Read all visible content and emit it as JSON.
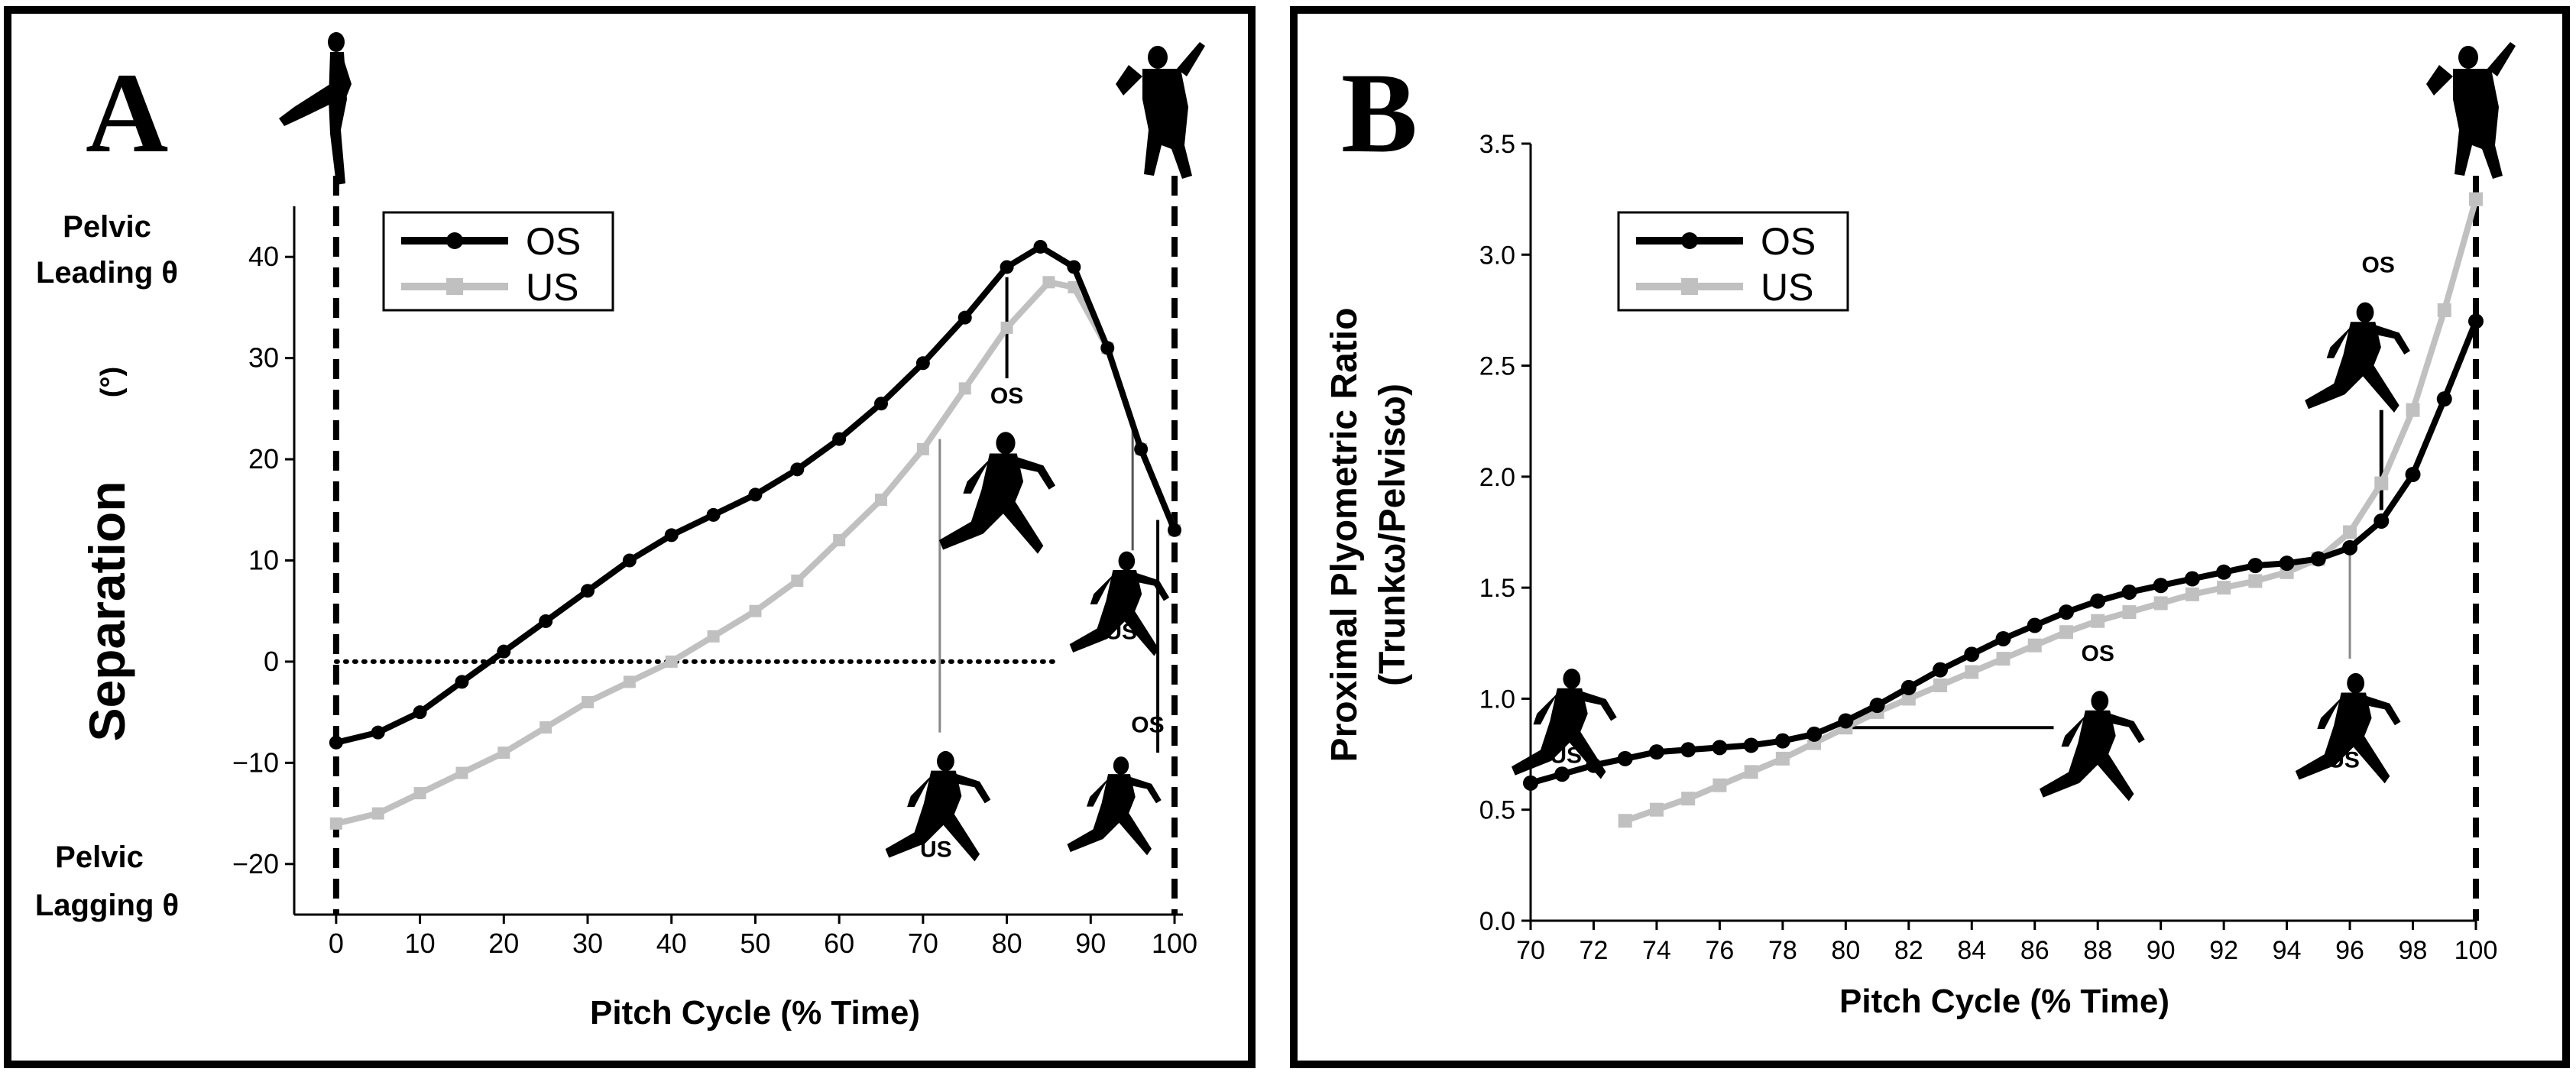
{
  "chart_data": [
    {
      "panel_letter": "A",
      "type": "line",
      "xlabel": "Pitch Cycle (% Time)",
      "ylabel": "Separation",
      "ylabel_unit": "(°)",
      "xlim": [
        -5,
        101
      ],
      "ylim": [
        -25,
        45
      ],
      "xticks": [
        0,
        10,
        20,
        30,
        40,
        50,
        60,
        70,
        80,
        90,
        100
      ],
      "yticks": [
        -20,
        -10,
        0,
        10,
        20,
        30,
        40
      ],
      "y_top_note": [
        "Pelvic",
        "Leading θ"
      ],
      "y_bottom_note": [
        "Pelvic",
        "Lagging θ"
      ],
      "zero_line": true,
      "series": [
        {
          "name": "OS",
          "color": "#000000",
          "marker": "circle",
          "x": [
            0,
            5,
            10,
            15,
            20,
            25,
            30,
            35,
            40,
            45,
            50,
            55,
            60,
            65,
            70,
            75,
            80,
            84,
            88,
            92,
            96,
            100
          ],
          "y": [
            -8,
            -7,
            -5,
            -2,
            1,
            4,
            7,
            10,
            12.5,
            14.5,
            16.5,
            19,
            22,
            25.5,
            29.5,
            34,
            39,
            41,
            39,
            31,
            21,
            13
          ]
        },
        {
          "name": "US",
          "color": "#c0c0c0",
          "marker": "square",
          "x": [
            0,
            5,
            10,
            15,
            20,
            25,
            30,
            35,
            40,
            45,
            50,
            55,
            60,
            65,
            70,
            75,
            80,
            85,
            88,
            92,
            96,
            100
          ],
          "y": [
            -16,
            -15,
            -13,
            -11,
            -9,
            -6.5,
            -4,
            -2,
            0,
            2.5,
            5,
            8,
            12,
            16,
            21,
            27,
            33,
            37.5,
            37,
            31,
            21,
            13
          ]
        }
      ],
      "annotations": [
        {
          "label": "OS",
          "x": 80
        },
        {
          "label": "US",
          "x": 95
        },
        {
          "label": "US",
          "x": 72
        },
        {
          "label": "OS",
          "x": 98
        }
      ],
      "event_lines_x": [
        0,
        100
      ]
    },
    {
      "panel_letter": "B",
      "type": "line",
      "xlabel": "Pitch Cycle (% Time)",
      "ylabel": "Proximal Plyometric Ratio",
      "ylabel2": "(Trunkω/Pelvisω)",
      "xlim": [
        70,
        100
      ],
      "ylim": [
        0,
        3.5
      ],
      "xticks": [
        70,
        72,
        74,
        76,
        78,
        80,
        82,
        84,
        86,
        88,
        90,
        92,
        94,
        96,
        98,
        100
      ],
      "yticks": [
        "0.0",
        "0.5",
        "1.0",
        "1.5",
        "2.0",
        "2.5",
        "3.0",
        "3.5"
      ],
      "series": [
        {
          "name": "OS",
          "color": "#000000",
          "marker": "circle",
          "x": [
            70,
            71,
            72,
            73,
            74,
            75,
            76,
            77,
            78,
            79,
            80,
            81,
            82,
            83,
            84,
            85,
            86,
            87,
            88,
            89,
            90,
            91,
            92,
            93,
            94,
            95,
            96,
            97,
            98,
            99,
            100
          ],
          "y": [
            0.62,
            0.66,
            0.7,
            0.73,
            0.76,
            0.77,
            0.78,
            0.79,
            0.81,
            0.84,
            0.9,
            0.97,
            1.05,
            1.13,
            1.2,
            1.27,
            1.33,
            1.39,
            1.44,
            1.48,
            1.51,
            1.54,
            1.57,
            1.6,
            1.61,
            1.63,
            1.68,
            1.8,
            2.01,
            2.35,
            2.7
          ]
        },
        {
          "name": "US",
          "color": "#c0c0c0",
          "marker": "square",
          "x": [
            73,
            74,
            75,
            76,
            77,
            78,
            79,
            80,
            81,
            82,
            83,
            84,
            85,
            86,
            87,
            88,
            89,
            90,
            91,
            92,
            93,
            94,
            95,
            96,
            97,
            98,
            99,
            100
          ],
          "y": [
            0.45,
            0.5,
            0.55,
            0.61,
            0.67,
            0.73,
            0.8,
            0.87,
            0.94,
            1.0,
            1.06,
            1.12,
            1.18,
            1.24,
            1.3,
            1.35,
            1.39,
            1.43,
            1.47,
            1.5,
            1.53,
            1.57,
            1.63,
            1.75,
            1.97,
            2.3,
            2.75,
            3.25
          ]
        }
      ],
      "annotations": [
        {
          "label": "US",
          "x": 71
        },
        {
          "label": "OS",
          "x": 88
        },
        {
          "label": "OS",
          "x": 97
        },
        {
          "label": "US",
          "x": 96
        }
      ],
      "event_lines_x": [
        100
      ]
    }
  ],
  "legend_labels": {
    "os": "OS",
    "us": "US"
  },
  "icons": [
    "pitcher-silhouette-icon"
  ]
}
